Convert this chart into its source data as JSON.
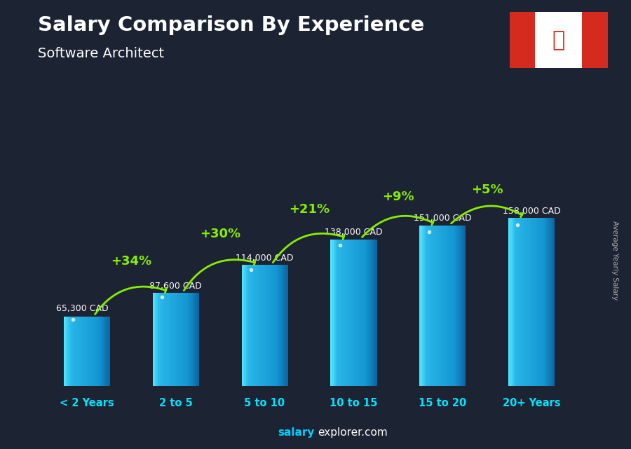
{
  "title": "Salary Comparison By Experience",
  "subtitle": "Software Architect",
  "ylabel": "Average Yearly Salary",
  "categories": [
    "< 2 Years",
    "2 to 5",
    "5 to 10",
    "10 to 15",
    "15 to 20",
    "20+ Years"
  ],
  "values": [
    65300,
    87600,
    114000,
    138000,
    151000,
    158000
  ],
  "value_labels": [
    "65,300 CAD",
    "87,600 CAD",
    "114,000 CAD",
    "138,000 CAD",
    "151,000 CAD",
    "158,000 CAD"
  ],
  "pct_changes": [
    "+34%",
    "+30%",
    "+21%",
    "+9%",
    "+5%"
  ],
  "bar_color_main": "#29b6e8",
  "bar_color_light": "#55d4f5",
  "bar_color_dark": "#1488b0",
  "bar_color_edge": "#0d6a90",
  "pct_color": "#88ee00",
  "arrow_color": "#88ee00",
  "val_label_color": "#ffffff",
  "cat_label_color": "#00e5ff",
  "title_color": "#ffffff",
  "subtitle_color": "#ffffff",
  "watermark_salary_color": "#00cfff",
  "watermark_rest_color": "#ffffff",
  "right_label_color": "#aaaaaa",
  "bg_color": "#1c2333",
  "figsize": [
    9.0,
    6.41
  ],
  "dpi": 100
}
